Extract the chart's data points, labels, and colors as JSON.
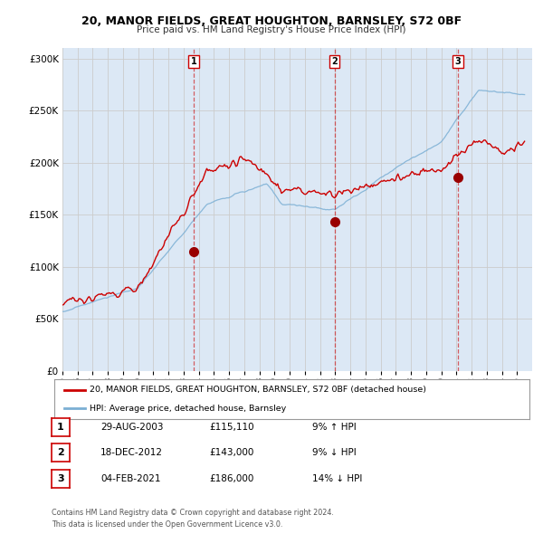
{
  "title": "20, MANOR FIELDS, GREAT HOUGHTON, BARNSLEY, S72 0BF",
  "subtitle": "Price paid vs. HM Land Registry's House Price Index (HPI)",
  "ylim": [
    0,
    310000
  ],
  "yticks": [
    0,
    50000,
    100000,
    150000,
    200000,
    250000,
    300000
  ],
  "legend_line1": "20, MANOR FIELDS, GREAT HOUGHTON, BARNSLEY, S72 0BF (detached house)",
  "legend_line2": "HPI: Average price, detached house, Barnsley",
  "transactions": [
    {
      "num": 1,
      "date": "29-AUG-2003",
      "price": 115110,
      "pct": "9%",
      "dir": "↑",
      "year": 2003.66
    },
    {
      "num": 2,
      "date": "18-DEC-2012",
      "price": 143000,
      "pct": "9%",
      "dir": "↓",
      "year": 2012.96
    },
    {
      "num": 3,
      "date": "04-FEB-2021",
      "price": 186000,
      "pct": "14%",
      "dir": "↓",
      "year": 2021.09
    }
  ],
  "footer1": "Contains HM Land Registry data © Crown copyright and database right 2024.",
  "footer2": "This data is licensed under the Open Government Licence v3.0.",
  "red_color": "#cc0000",
  "blue_color": "#7bafd4",
  "bg_color": "#dce8f5",
  "plot_bg": "#ffffff",
  "vline_color": "#cc0000",
  "grid_color": "#cccccc",
  "dot_color": "#990000",
  "xstart": 1995,
  "xend": 2026
}
